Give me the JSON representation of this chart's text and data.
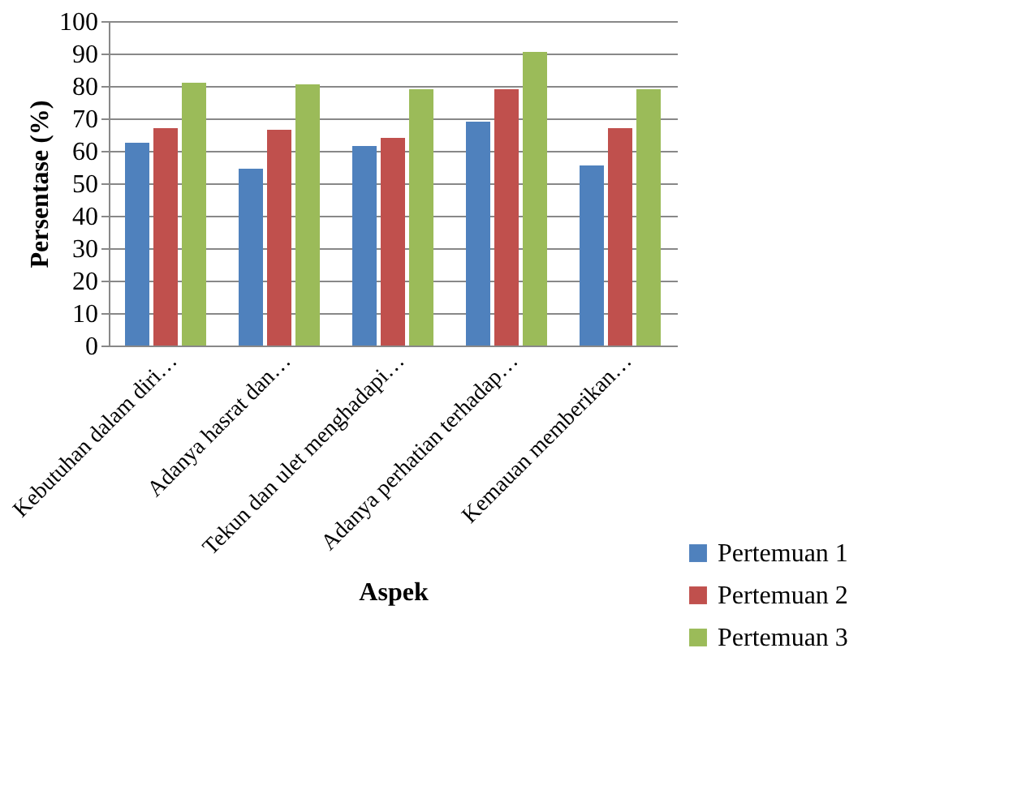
{
  "chart_data": {
    "type": "bar",
    "xlabel": "Aspek",
    "ylabel": "Persentase (%)",
    "categories": [
      "Kebutuhan dalam diri…",
      "Adanya hasrat dan…",
      "Tekun dan ulet menghadapi…",
      "Adanya perhatian terhadap…",
      "Kemauan memberikan…"
    ],
    "series": [
      {
        "name": "Pertemuan 1",
        "color": "#4f81bd",
        "values": [
          62.5,
          54.5,
          61.5,
          69,
          55.5
        ]
      },
      {
        "name": "Pertemuan 2",
        "color": "#c0504d",
        "values": [
          67,
          66.5,
          64,
          79,
          67
        ]
      },
      {
        "name": "Pertemuan 3",
        "color": "#9bbb59",
        "values": [
          81,
          80.5,
          79,
          90.5,
          79
        ]
      }
    ],
    "ylim": [
      0,
      100
    ],
    "yticks": [
      0,
      10,
      20,
      30,
      40,
      50,
      60,
      70,
      80,
      90,
      100
    ],
    "grid": "y",
    "legend": "bottom right"
  }
}
